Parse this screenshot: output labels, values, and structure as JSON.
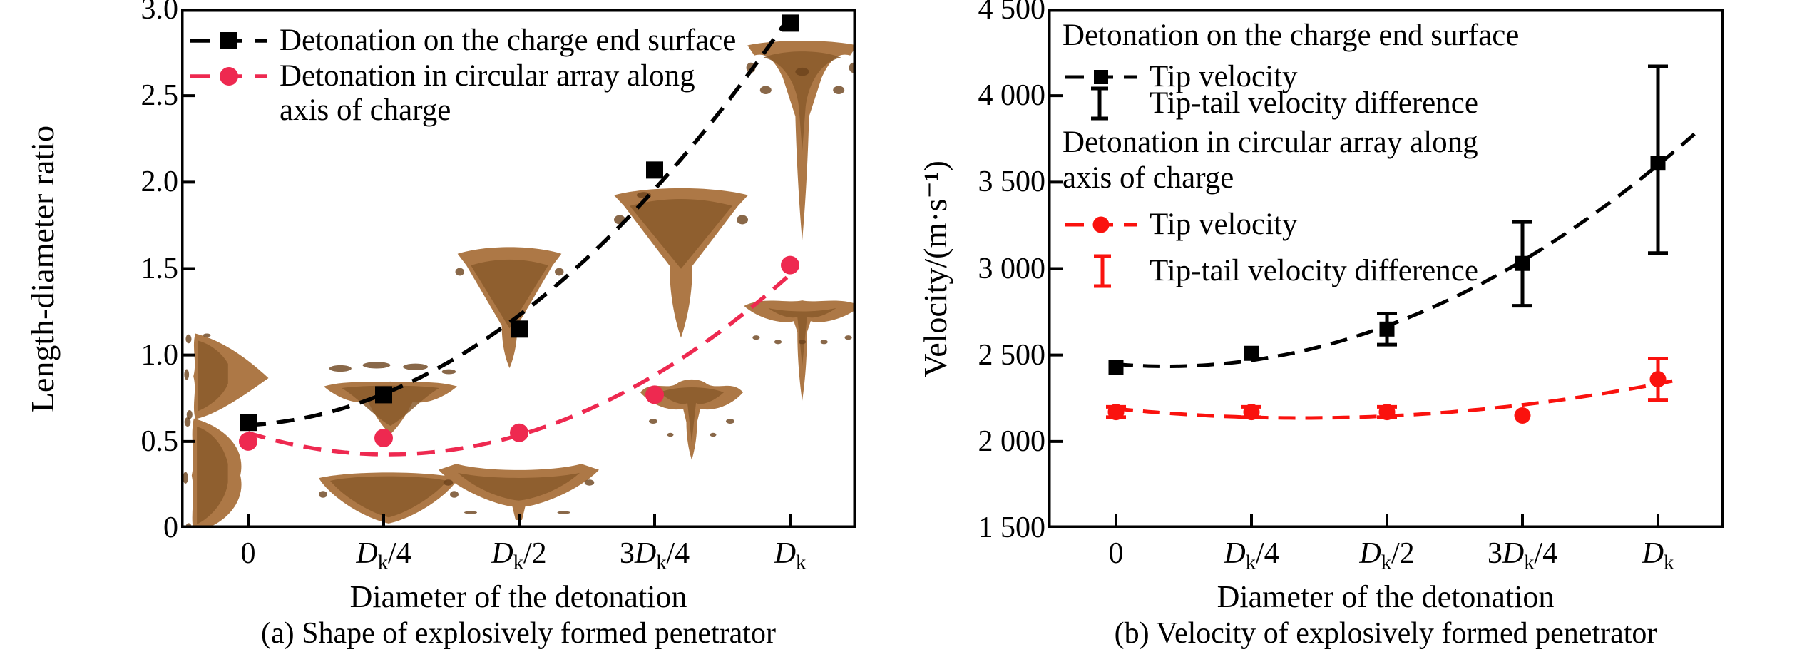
{
  "figure": {
    "caption_a": "(a) Shape of explosively formed penetrator",
    "caption_b": "(b) Velocity of explosively formed penetrator"
  },
  "colors": {
    "black_series": "#000000",
    "red_series_panel_a": "#ee2950",
    "red_series_panel_b": "#fa120e",
    "efp_brown_light": "#ad7846",
    "efp_brown_mid": "#8a5a2b",
    "efp_brown_dark": "#6b421c"
  },
  "chart_data": [
    {
      "panel": "a",
      "type": "scatter",
      "caption": "(a) Shape of explosively formed penetrator",
      "xlabel": "Diameter of the detonation",
      "ylabel": "Length-diameter ratio",
      "categories": [
        "0",
        "Dk/4",
        "Dk/2",
        "3Dk/4",
        "Dk"
      ],
      "ytick_labels": [
        "0",
        "0.5",
        "1.0",
        "1.5",
        "2.0",
        "2.5",
        "3.0"
      ],
      "ylim": [
        0,
        3.0
      ],
      "grid": false,
      "legend_position": "top-left-inside",
      "legend_lines": [
        "Detonation on the charge end surface",
        "Detonation in circular array along",
        "axis of charge"
      ],
      "series": [
        {
          "name": "Detonation on the charge end surface",
          "marker": "square",
          "linestyle": "dashed",
          "color": "#000000",
          "values": [
            0.61,
            0.77,
            1.15,
            2.07,
            2.92
          ]
        },
        {
          "name": "Detonation in circular array along axis of charge",
          "marker": "circle",
          "linestyle": "dashed",
          "color": "#ee2950",
          "values": [
            0.5,
            0.52,
            0.55,
            0.77,
            1.52
          ]
        }
      ],
      "insets": [
        {
          "series": "end-surface",
          "category": "0",
          "shape": "side-cone"
        },
        {
          "series": "circular-array",
          "category": "0",
          "shape": "side-bulge"
        },
        {
          "series": "end-surface",
          "category": "Dk/4",
          "shape": "crowned-V"
        },
        {
          "series": "circular-array",
          "category": "Dk/4",
          "shape": "shallow-bowl"
        },
        {
          "series": "end-surface",
          "category": "Dk/2",
          "shape": "funnel-short-tail"
        },
        {
          "series": "circular-array",
          "category": "Dk/2",
          "shape": "V-with-tail-wings"
        },
        {
          "series": "end-surface",
          "category": "3Dk/4",
          "shape": "funnel-mid-tail"
        },
        {
          "series": "circular-array",
          "category": "3Dk/4",
          "shape": "T-with-wings"
        },
        {
          "series": "end-surface",
          "category": "Dk",
          "shape": "funnel-long-tail"
        },
        {
          "series": "circular-array",
          "category": "Dk",
          "shape": "T-long-tail"
        }
      ]
    },
    {
      "panel": "b",
      "type": "scatter",
      "caption": "(b) Velocity of explosively formed penetrator",
      "xlabel": "Diameter of the detonation",
      "ylabel": "Velocity/(m·s⁻¹)",
      "categories": [
        "0",
        "Dk/4",
        "Dk/2",
        "3Dk/4",
        "Dk"
      ],
      "ytick_labels": [
        "1 500",
        "2 000",
        "2 500",
        "3 000",
        "3 500",
        "4 000",
        "4 500"
      ],
      "ylim": [
        1500,
        4500
      ],
      "grid": false,
      "legend_position": "top-left-inside",
      "legend": {
        "header1": "Detonation on the charge end surface",
        "tip1": "Tip velocity",
        "diff1": "Tip-tail velocity difference",
        "header2_line1": "Detonation in circular array along",
        "header2_line2": "axis of charge",
        "tip2": "Tip velocity",
        "diff2": "Tip-tail velocity difference"
      },
      "series": [
        {
          "name": "Tip velocity - detonation on the charge end surface",
          "marker": "square",
          "linestyle": "dashed",
          "color": "#000000",
          "values": [
            2430,
            2510,
            2650,
            3030,
            3610
          ],
          "err_plus": [
            0,
            0,
            90,
            240,
            560
          ],
          "err_minus": [
            0,
            0,
            90,
            245,
            520
          ]
        },
        {
          "name": "Tip velocity - detonation in circular array along axis of charge",
          "marker": "circle",
          "linestyle": "dashed",
          "color": "#fa120e",
          "values": [
            2170,
            2170,
            2170,
            2150,
            2360
          ],
          "err_plus": [
            30,
            30,
            30,
            0,
            120
          ],
          "err_minus": [
            30,
            30,
            30,
            0,
            120
          ]
        }
      ]
    }
  ]
}
